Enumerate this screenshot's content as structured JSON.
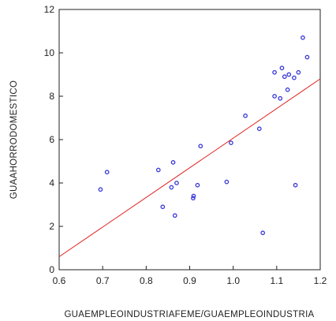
{
  "chart_data": {
    "type": "scatter",
    "title": "",
    "xlabel": "GUAEMPLEOINDUSTRIAFEME/GUAEMPLEOINDUSTRIA",
    "ylabel": "GUAAHORRODOMESTICO",
    "xlim": [
      0.6,
      1.2
    ],
    "ylim": [
      0,
      12
    ],
    "xticks": [
      "0.6",
      "0.7",
      "0.8",
      "0.9",
      "1.0",
      "1.1",
      "1.2"
    ],
    "yticks": [
      "0",
      "2",
      "4",
      "6",
      "8",
      "10",
      "12"
    ],
    "grid": false,
    "legend": "none",
    "series": [
      {
        "points": [
          [
            0.695,
            3.7
          ],
          [
            0.71,
            4.5
          ],
          [
            0.828,
            4.6
          ],
          [
            0.838,
            2.9
          ],
          [
            0.858,
            3.8
          ],
          [
            0.862,
            4.95
          ],
          [
            0.866,
            2.5
          ],
          [
            0.87,
            4.0
          ],
          [
            0.908,
            3.3
          ],
          [
            0.909,
            3.4
          ],
          [
            0.918,
            3.9
          ],
          [
            0.925,
            5.7
          ],
          [
            0.985,
            4.05
          ],
          [
            0.995,
            5.85
          ],
          [
            1.028,
            7.1
          ],
          [
            1.06,
            6.5
          ],
          [
            1.068,
            1.7
          ],
          [
            1.095,
            9.1
          ],
          [
            1.095,
            8.0
          ],
          [
            1.108,
            7.9
          ],
          [
            1.112,
            9.3
          ],
          [
            1.118,
            8.9
          ],
          [
            1.125,
            8.3
          ],
          [
            1.128,
            9.0
          ],
          [
            1.14,
            8.85
          ],
          [
            1.143,
            3.9
          ],
          [
            1.15,
            9.1
          ],
          [
            1.16,
            10.7
          ],
          [
            1.17,
            9.8
          ]
        ]
      }
    ],
    "fit_line": {
      "x": [
        0.6,
        1.2
      ],
      "y": [
        0.6,
        8.8
      ]
    },
    "colors": {
      "points": "#3a3ad8",
      "fit_line": "#e02020",
      "axis": "#222222"
    }
  }
}
